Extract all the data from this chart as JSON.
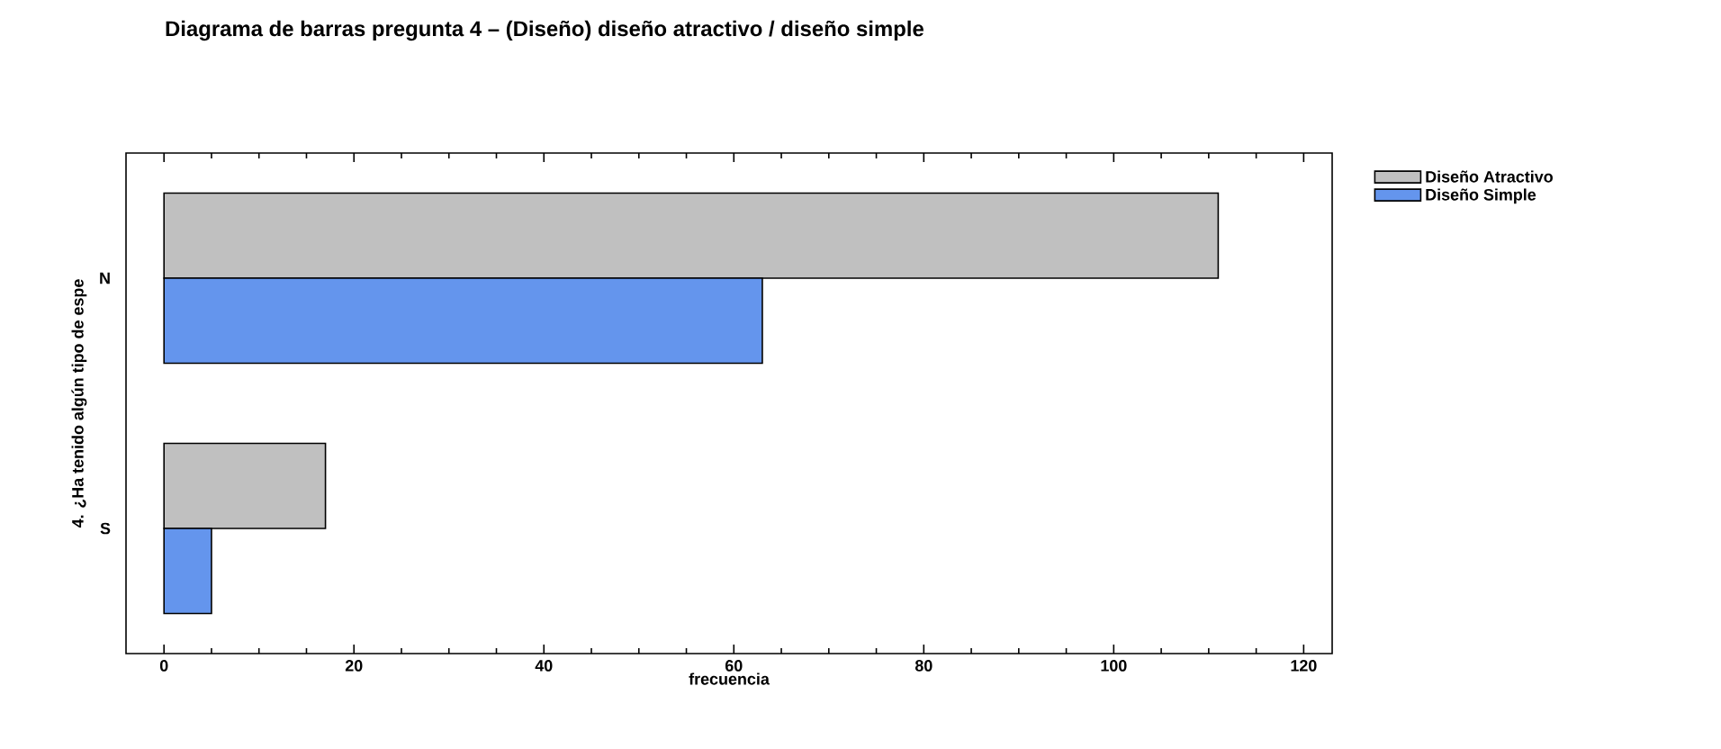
{
  "chart_data": {
    "type": "bar",
    "orientation": "horizontal",
    "title": "Diagrama de barras pregunta 4 – (Diseño) diseño atractivo / diseño simple",
    "xlabel": "frecuencia",
    "ylabel": "4. ¿Ha tenido algún tipo de espe",
    "categories": [
      "N",
      "S"
    ],
    "series": [
      {
        "name": "Diseño Atractivo",
        "color": "#c0c0c0",
        "values": [
          111,
          17
        ]
      },
      {
        "name": "Diseño Simple",
        "color": "#6495ed",
        "values": [
          63,
          5
        ]
      }
    ],
    "xlim": [
      -4,
      123
    ],
    "xticks": [
      0,
      20,
      40,
      60,
      80,
      100,
      120
    ],
    "grid": false,
    "legend": "top right"
  }
}
